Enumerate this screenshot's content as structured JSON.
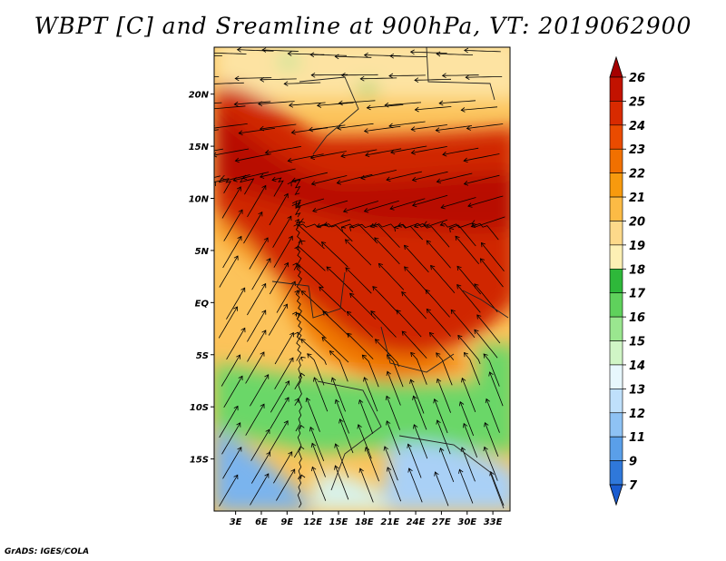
{
  "title": "WBPT [C] and Sreamline at 900hPa, VT: 2019062900",
  "credit": "GrADS: IGES/COLA",
  "lat_labels": [
    "20N",
    "15N",
    "10N",
    "5N",
    "EQ",
    "5S",
    "10S",
    "15S"
  ],
  "lat_values": [
    20,
    15,
    10,
    5,
    0,
    -5,
    -10,
    -15
  ],
  "lon_labels": [
    "3E",
    "6E",
    "9E",
    "12E",
    "15E",
    "18E",
    "21E",
    "24E",
    "27E",
    "30E",
    "33E"
  ],
  "lon_values": [
    3,
    6,
    9,
    12,
    15,
    18,
    21,
    24,
    27,
    30,
    33
  ],
  "colorbar": {
    "labels": [
      "26",
      "25",
      "24",
      "23",
      "22",
      "21",
      "20",
      "19",
      "18",
      "17",
      "16",
      "15",
      "14",
      "13",
      "12",
      "11",
      "9",
      "7"
    ],
    "colors": [
      "#a50000",
      "#c21200",
      "#d82a00",
      "#ea4b00",
      "#f17000",
      "#f79a0e",
      "#fcbb45",
      "#fdd98a",
      "#fdf0b4",
      "#2eb83a",
      "#5fd15c",
      "#9ae68f",
      "#d0f5c6",
      "#e7f7fd",
      "#bfe0fb",
      "#8ec2f4",
      "#5a9fe9",
      "#2f78da",
      "#1a5cd0"
    ]
  },
  "colors": {
    "hot": "#c81e00",
    "warm": "#f07800",
    "mild": "#fcc35a",
    "green": "#64d264",
    "cool": "#bde4fa",
    "blue": "#7ab4ee",
    "streamline": "#000000"
  }
}
